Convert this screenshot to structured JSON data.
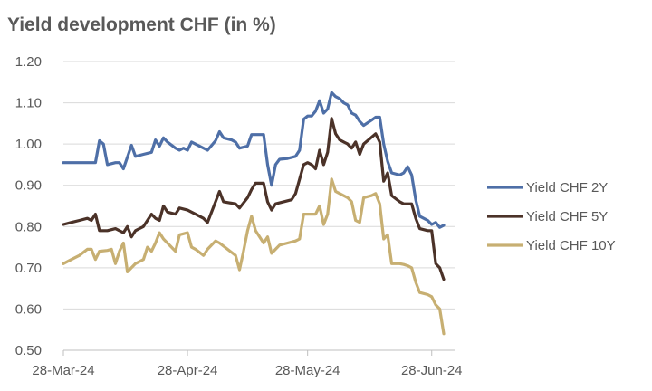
{
  "chart_data": {
    "type": "line",
    "title": "Yield development CHF (in %)",
    "xlabel": "",
    "ylabel": "",
    "ylim": [
      0.5,
      1.2
    ],
    "yticks": [
      "1.20",
      "1.10",
      "1.00",
      "0.90",
      "0.80",
      "0.70",
      "0.60",
      "0.50"
    ],
    "ytick_values": [
      1.2,
      1.1,
      1.0,
      0.9,
      0.8,
      0.7,
      0.6,
      0.5
    ],
    "xticks": [
      "28-Mar-24",
      "28-Apr-24",
      "28-May-24",
      "28-Jun-24"
    ],
    "xtick_dates": [
      "2024-03-28",
      "2024-04-28",
      "2024-05-28",
      "2024-06-28"
    ],
    "xlim": [
      "2024-03-28",
      "2024-07-01"
    ],
    "grid": true,
    "legend_position": "right",
    "series": [
      {
        "name": "Yield CHF 2Y",
        "color": "#4E6FA7",
        "points": [
          [
            "2024-03-28",
            0.955
          ],
          [
            "2024-04-01",
            0.955
          ],
          [
            "2024-04-02",
            0.955
          ],
          [
            "2024-04-03",
            0.955
          ],
          [
            "2024-04-04",
            0.955
          ],
          [
            "2024-04-05",
            0.955
          ],
          [
            "2024-04-06",
            1.008
          ],
          [
            "2024-04-07",
            1.0
          ],
          [
            "2024-04-08",
            0.95
          ],
          [
            "2024-04-10",
            0.955
          ],
          [
            "2024-04-11",
            0.955
          ],
          [
            "2024-04-12",
            0.94
          ],
          [
            "2024-04-14",
            0.997
          ],
          [
            "2024-04-15",
            0.97
          ],
          [
            "2024-04-17",
            0.975
          ],
          [
            "2024-04-19",
            0.98
          ],
          [
            "2024-04-20",
            1.01
          ],
          [
            "2024-04-21",
            0.995
          ],
          [
            "2024-04-22",
            1.015
          ],
          [
            "2024-04-23",
            1.005
          ],
          [
            "2024-04-25",
            0.99
          ],
          [
            "2024-04-26",
            0.985
          ],
          [
            "2024-04-27",
            0.99
          ],
          [
            "2024-04-28",
            0.985
          ],
          [
            "2024-04-29",
            1.005
          ],
          [
            "2024-05-01",
            0.995
          ],
          [
            "2024-05-03",
            0.985
          ],
          [
            "2024-05-05",
            1.008
          ],
          [
            "2024-05-06",
            1.03
          ],
          [
            "2024-05-07",
            1.015
          ],
          [
            "2024-05-09",
            1.01
          ],
          [
            "2024-05-10",
            1.005
          ],
          [
            "2024-05-11",
            0.99
          ],
          [
            "2024-05-13",
            0.995
          ],
          [
            "2024-05-14",
            1.023
          ],
          [
            "2024-05-17",
            1.023
          ],
          [
            "2024-05-18",
            0.95
          ],
          [
            "2024-05-19",
            0.9
          ],
          [
            "2024-05-20",
            0.95
          ],
          [
            "2024-05-21",
            0.963
          ],
          [
            "2024-05-23",
            0.965
          ],
          [
            "2024-05-25",
            0.97
          ],
          [
            "2024-05-26",
            0.985
          ],
          [
            "2024-05-27",
            1.06
          ],
          [
            "2024-05-28",
            1.068
          ],
          [
            "2024-05-29",
            1.068
          ],
          [
            "2024-05-30",
            1.08
          ],
          [
            "2024-05-31",
            1.105
          ],
          [
            "2024-06-01",
            1.075
          ],
          [
            "2024-06-02",
            1.085
          ],
          [
            "2024-06-03",
            1.125
          ],
          [
            "2024-06-04",
            1.115
          ],
          [
            "2024-06-05",
            1.11
          ],
          [
            "2024-06-06",
            1.1
          ],
          [
            "2024-06-07",
            1.095
          ],
          [
            "2024-06-08",
            1.075
          ],
          [
            "2024-06-09",
            1.07
          ],
          [
            "2024-06-10",
            1.055
          ],
          [
            "2024-06-11",
            1.045
          ],
          [
            "2024-06-13",
            1.058
          ],
          [
            "2024-06-14",
            1.065
          ],
          [
            "2024-06-15",
            1.065
          ],
          [
            "2024-06-16",
            1.0
          ],
          [
            "2024-06-17",
            0.958
          ],
          [
            "2024-06-18",
            0.93
          ],
          [
            "2024-06-20",
            0.925
          ],
          [
            "2024-06-21",
            0.93
          ],
          [
            "2024-06-22",
            0.945
          ],
          [
            "2024-06-23",
            0.925
          ],
          [
            "2024-06-24",
            0.865
          ],
          [
            "2024-06-25",
            0.825
          ],
          [
            "2024-06-27",
            0.815
          ],
          [
            "2024-06-28",
            0.805
          ],
          [
            "2024-06-29",
            0.81
          ],
          [
            "2024-06-30",
            0.798
          ],
          [
            "2024-07-01",
            0.803
          ]
        ]
      },
      {
        "name": "Yield CHF 5Y",
        "color": "#4B3228",
        "points": [
          [
            "2024-03-28",
            0.805
          ],
          [
            "2024-03-30",
            0.81
          ],
          [
            "2024-04-01",
            0.815
          ],
          [
            "2024-04-03",
            0.82
          ],
          [
            "2024-04-04",
            0.815
          ],
          [
            "2024-04-05",
            0.83
          ],
          [
            "2024-04-06",
            0.79
          ],
          [
            "2024-04-08",
            0.79
          ],
          [
            "2024-04-10",
            0.795
          ],
          [
            "2024-04-12",
            0.785
          ],
          [
            "2024-04-13",
            0.8
          ],
          [
            "2024-04-14",
            0.775
          ],
          [
            "2024-04-15",
            0.79
          ],
          [
            "2024-04-17",
            0.8
          ],
          [
            "2024-04-19",
            0.83
          ],
          [
            "2024-04-20",
            0.82
          ],
          [
            "2024-04-21",
            0.815
          ],
          [
            "2024-04-22",
            0.85
          ],
          [
            "2024-04-23",
            0.835
          ],
          [
            "2024-04-25",
            0.83
          ],
          [
            "2024-04-26",
            0.845
          ],
          [
            "2024-04-28",
            0.84
          ],
          [
            "2024-04-30",
            0.83
          ],
          [
            "2024-05-02",
            0.82
          ],
          [
            "2024-05-03",
            0.81
          ],
          [
            "2024-05-05",
            0.86
          ],
          [
            "2024-05-06",
            0.885
          ],
          [
            "2024-05-07",
            0.86
          ],
          [
            "2024-05-10",
            0.855
          ],
          [
            "2024-05-11",
            0.845
          ],
          [
            "2024-05-13",
            0.87
          ],
          [
            "2024-05-14",
            0.89
          ],
          [
            "2024-05-15",
            0.905
          ],
          [
            "2024-05-17",
            0.905
          ],
          [
            "2024-05-18",
            0.86
          ],
          [
            "2024-05-19",
            0.84
          ],
          [
            "2024-05-20",
            0.855
          ],
          [
            "2024-05-22",
            0.86
          ],
          [
            "2024-05-24",
            0.865
          ],
          [
            "2024-05-25",
            0.88
          ],
          [
            "2024-05-27",
            0.95
          ],
          [
            "2024-05-28",
            0.955
          ],
          [
            "2024-05-29",
            0.95
          ],
          [
            "2024-05-30",
            0.94
          ],
          [
            "2024-05-31",
            0.985
          ],
          [
            "2024-06-01",
            0.95
          ],
          [
            "2024-06-02",
            0.98
          ],
          [
            "2024-06-03",
            1.062
          ],
          [
            "2024-06-04",
            1.025
          ],
          [
            "2024-06-05",
            1.01
          ],
          [
            "2024-06-07",
            1.0
          ],
          [
            "2024-06-08",
            0.99
          ],
          [
            "2024-06-09",
            1.005
          ],
          [
            "2024-06-10",
            0.975
          ],
          [
            "2024-06-11",
            1.0
          ],
          [
            "2024-06-14",
            1.025
          ],
          [
            "2024-06-15",
            1.005
          ],
          [
            "2024-06-16",
            0.91
          ],
          [
            "2024-06-17",
            0.93
          ],
          [
            "2024-06-18",
            0.875
          ],
          [
            "2024-06-20",
            0.86
          ],
          [
            "2024-06-21",
            0.855
          ],
          [
            "2024-06-23",
            0.855
          ],
          [
            "2024-06-24",
            0.82
          ],
          [
            "2024-06-25",
            0.795
          ],
          [
            "2024-06-27",
            0.79
          ],
          [
            "2024-06-28",
            0.79
          ],
          [
            "2024-06-29",
            0.71
          ],
          [
            "2024-06-30",
            0.7
          ],
          [
            "2024-07-01",
            0.672
          ]
        ]
      },
      {
        "name": "Yield CHF 10Y",
        "color": "#C7AF72",
        "points": [
          [
            "2024-03-28",
            0.71
          ],
          [
            "2024-03-30",
            0.72
          ],
          [
            "2024-04-01",
            0.73
          ],
          [
            "2024-04-03",
            0.745
          ],
          [
            "2024-04-04",
            0.745
          ],
          [
            "2024-04-05",
            0.72
          ],
          [
            "2024-04-06",
            0.74
          ],
          [
            "2024-04-08",
            0.742
          ],
          [
            "2024-04-09",
            0.745
          ],
          [
            "2024-04-10",
            0.71
          ],
          [
            "2024-04-11",
            0.74
          ],
          [
            "2024-04-12",
            0.76
          ],
          [
            "2024-04-13",
            0.69
          ],
          [
            "2024-04-15",
            0.71
          ],
          [
            "2024-04-17",
            0.72
          ],
          [
            "2024-04-18",
            0.75
          ],
          [
            "2024-04-19",
            0.74
          ],
          [
            "2024-04-20",
            0.76
          ],
          [
            "2024-04-21",
            0.785
          ],
          [
            "2024-04-22",
            0.77
          ],
          [
            "2024-04-24",
            0.75
          ],
          [
            "2024-04-25",
            0.74
          ],
          [
            "2024-04-26",
            0.78
          ],
          [
            "2024-04-28",
            0.785
          ],
          [
            "2024-04-29",
            0.75
          ],
          [
            "2024-04-30",
            0.745
          ],
          [
            "2024-05-02",
            0.73
          ],
          [
            "2024-05-03",
            0.745
          ],
          [
            "2024-05-05",
            0.765
          ],
          [
            "2024-05-06",
            0.76
          ],
          [
            "2024-05-08",
            0.745
          ],
          [
            "2024-05-10",
            0.73
          ],
          [
            "2024-05-11",
            0.695
          ],
          [
            "2024-05-12",
            0.74
          ],
          [
            "2024-05-13",
            0.79
          ],
          [
            "2024-05-14",
            0.825
          ],
          [
            "2024-05-15",
            0.79
          ],
          [
            "2024-05-17",
            0.76
          ],
          [
            "2024-05-18",
            0.775
          ],
          [
            "2024-05-19",
            0.735
          ],
          [
            "2024-05-20",
            0.745
          ],
          [
            "2024-05-21",
            0.755
          ],
          [
            "2024-05-23",
            0.76
          ],
          [
            "2024-05-25",
            0.765
          ],
          [
            "2024-05-26",
            0.77
          ],
          [
            "2024-05-27",
            0.83
          ],
          [
            "2024-05-28",
            0.83
          ],
          [
            "2024-05-30",
            0.83
          ],
          [
            "2024-05-31",
            0.85
          ],
          [
            "2024-06-01",
            0.805
          ],
          [
            "2024-06-02",
            0.83
          ],
          [
            "2024-06-03",
            0.915
          ],
          [
            "2024-06-04",
            0.885
          ],
          [
            "2024-06-05",
            0.88
          ],
          [
            "2024-06-07",
            0.87
          ],
          [
            "2024-06-08",
            0.86
          ],
          [
            "2024-06-09",
            0.815
          ],
          [
            "2024-06-10",
            0.81
          ],
          [
            "2024-06-11",
            0.87
          ],
          [
            "2024-06-13",
            0.875
          ],
          [
            "2024-06-14",
            0.88
          ],
          [
            "2024-06-15",
            0.855
          ],
          [
            "2024-06-16",
            0.77
          ],
          [
            "2024-06-17",
            0.78
          ],
          [
            "2024-06-18",
            0.71
          ],
          [
            "2024-06-20",
            0.71
          ],
          [
            "2024-06-21",
            0.708
          ],
          [
            "2024-06-22",
            0.705
          ],
          [
            "2024-06-23",
            0.7
          ],
          [
            "2024-06-24",
            0.665
          ],
          [
            "2024-06-25",
            0.64
          ],
          [
            "2024-06-27",
            0.635
          ],
          [
            "2024-06-28",
            0.63
          ],
          [
            "2024-06-29",
            0.61
          ],
          [
            "2024-06-30",
            0.6
          ],
          [
            "2024-07-01",
            0.54
          ]
        ]
      }
    ]
  }
}
